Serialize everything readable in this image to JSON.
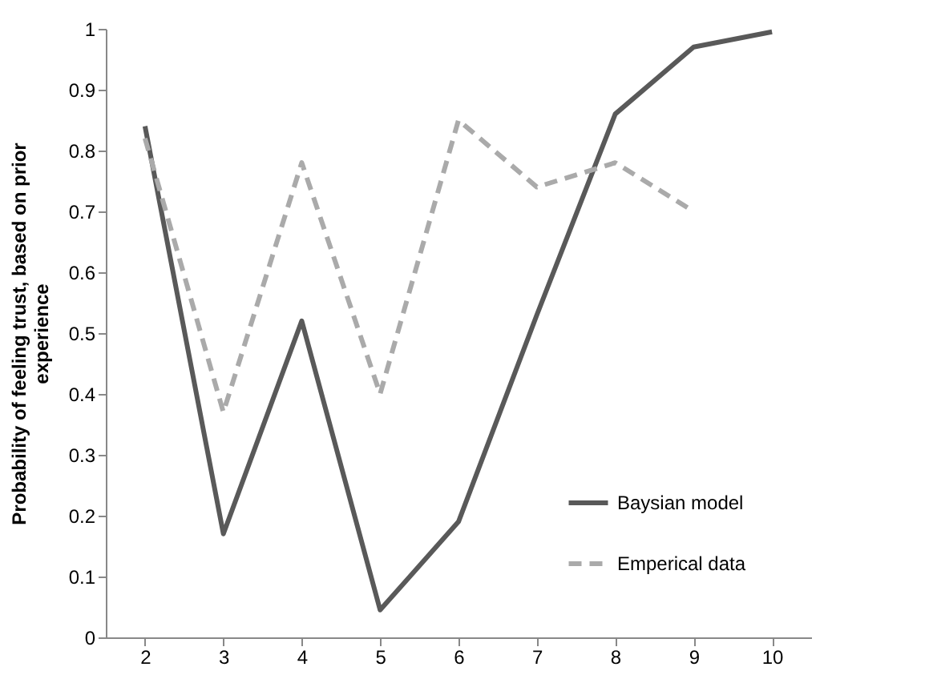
{
  "chart_data": {
    "type": "line",
    "ylabel": "Probability of feeling trust, based on prior experience",
    "categories": [
      "2",
      "3",
      "4",
      "5",
      "6",
      "7",
      "8",
      "9",
      "10"
    ],
    "series": [
      {
        "name": "Baysian model",
        "color": "#595959",
        "line_style": "solid",
        "values": [
          0.84,
          0.17,
          0.52,
          0.045,
          0.19,
          0.53,
          0.86,
          0.97,
          0.995
        ]
      },
      {
        "name": "Emperical data",
        "color": "#aaaaaa",
        "line_style": "dashed",
        "values": [
          0.82,
          0.37,
          0.78,
          0.4,
          0.85,
          0.74,
          0.78,
          0.7,
          null
        ]
      }
    ],
    "ylim": [
      0,
      1
    ],
    "yticks": [
      0,
      0.1,
      0.2,
      0.3,
      0.4,
      0.5,
      0.6,
      0.7,
      0.8,
      0.9,
      1
    ],
    "grid": false,
    "legend": "bottom right",
    "marker": "none"
  }
}
